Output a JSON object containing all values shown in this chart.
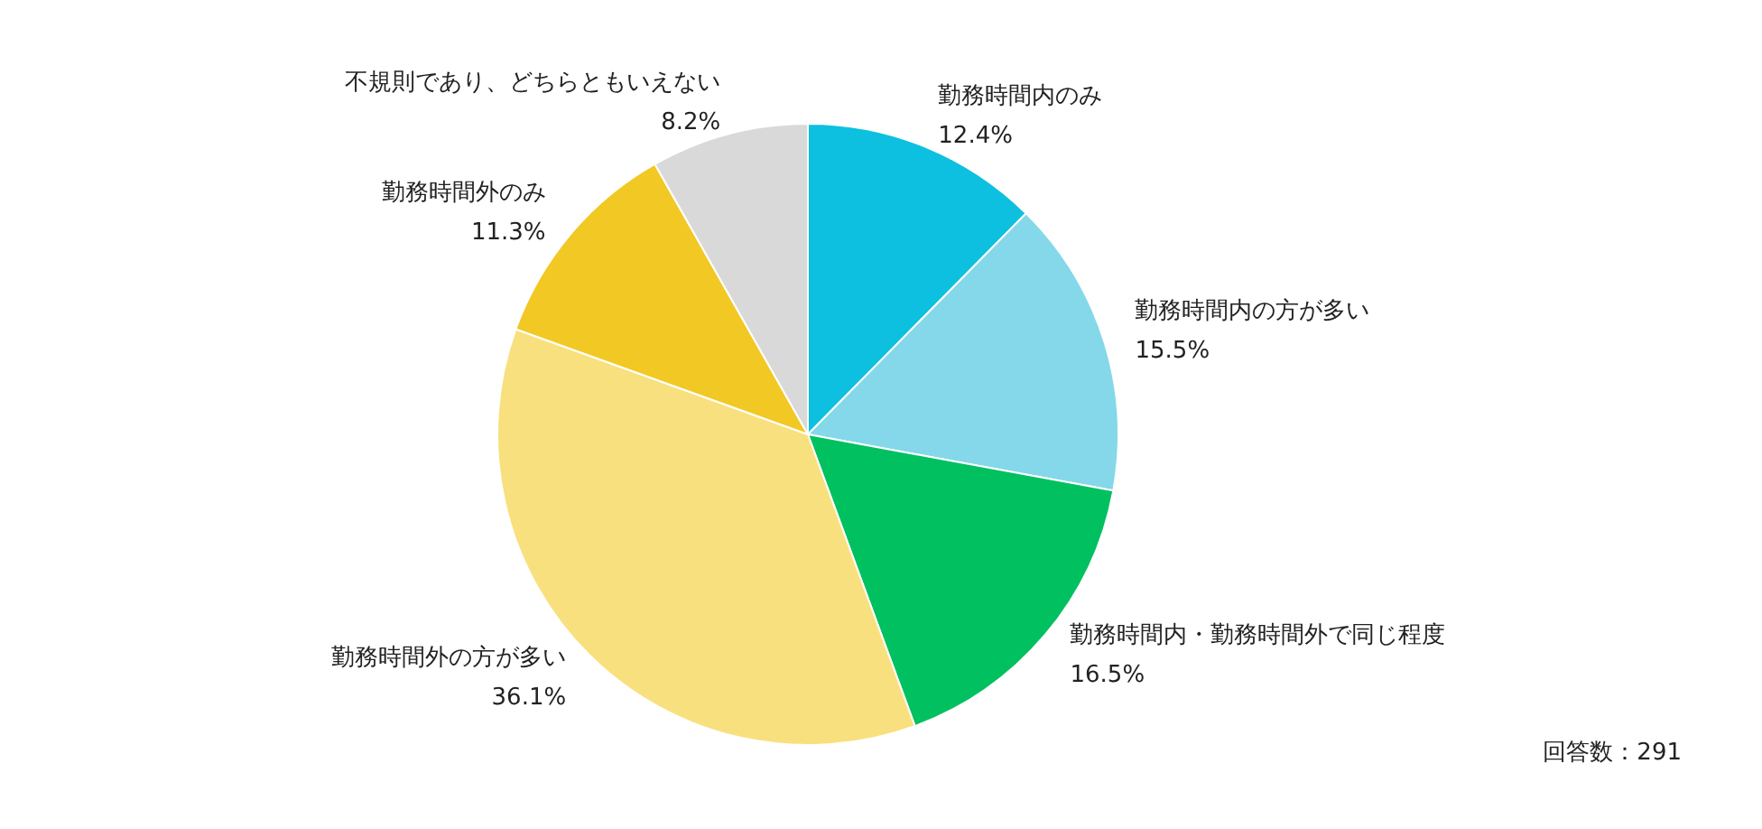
{
  "chart_data": {
    "type": "pie",
    "categories": [
      "勤務時間内のみ",
      "勤務時間内の方が多い",
      "勤務時間内・勤務時間外で同じ程度",
      "勤務時間外の方が多い",
      "勤務時間外のみ",
      "不規則であり、どちらともいえない"
    ],
    "values": [
      12.4,
      15.5,
      16.5,
      36.1,
      11.3,
      8.2
    ],
    "value_labels": [
      "12.4%",
      "15.5%",
      "16.5%",
      "36.1%",
      "11.3%",
      "8.2%"
    ],
    "colors": [
      "#0dc0e0",
      "#84d8ea",
      "#00c060",
      "#f9e07e",
      "#f2c824",
      "#d9d9d9"
    ],
    "annotations": [
      "回答数：291"
    ]
  }
}
